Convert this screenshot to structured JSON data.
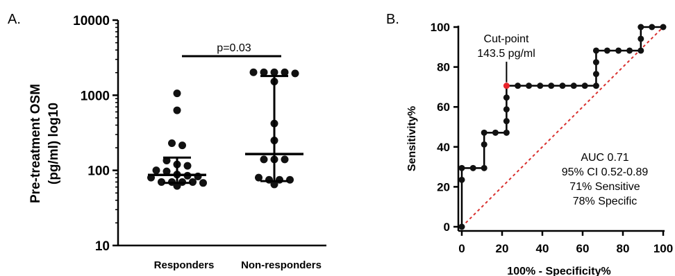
{
  "panels": {
    "a": "A.",
    "b": "B."
  },
  "chart_data": [
    {
      "type": "scatter",
      "scale": "log",
      "ylabel_line1": "Pre-treatment OSM",
      "ylabel_line2": "(pg/ml) log10",
      "ylim": [
        10,
        10000
      ],
      "yticks": [
        10,
        100,
        1000,
        10000
      ],
      "ytick_labels": [
        "10",
        "100",
        "1000",
        "10000"
      ],
      "categories": [
        "Responders",
        "Non-responders"
      ],
      "significance": "p=0.03",
      "groups": [
        {
          "name": "Responders",
          "values": [
            1060,
            630,
            230,
            215,
            135,
            120,
            115,
            100,
            97,
            88,
            85,
            83,
            80,
            70,
            70,
            70,
            70,
            68,
            62
          ],
          "median": 87,
          "iqr": [
            68,
            148
          ]
        },
        {
          "name": "Non-responders",
          "values": [
            2020,
            2020,
            2020,
            2020,
            1950,
            1520,
            420,
            250,
            140,
            140,
            140,
            80,
            75,
            75,
            75,
            65
          ],
          "median": 165,
          "iqr": [
            72,
            1800
          ]
        }
      ]
    },
    {
      "type": "line",
      "xlabel": "100% - Specificity%",
      "ylabel": "Sensitivity%",
      "xlim": [
        0,
        100
      ],
      "ylim": [
        0,
        100
      ],
      "xticks": [
        0,
        20,
        40,
        60,
        80,
        100
      ],
      "yticks": [
        0,
        20,
        40,
        60,
        80,
        100
      ],
      "xtick_labels": [
        "0",
        "20",
        "40",
        "60",
        "80",
        "100"
      ],
      "ytick_labels": [
        "0",
        "20",
        "40",
        "60",
        "80",
        "100"
      ],
      "reference_line": [
        [
          0,
          0
        ],
        [
          100,
          100
        ]
      ],
      "roc_points": [
        [
          0,
          0
        ],
        [
          0,
          23.5
        ],
        [
          0,
          29.4
        ],
        [
          5.6,
          29.4
        ],
        [
          11.1,
          29.4
        ],
        [
          11.1,
          41.2
        ],
        [
          11.1,
          47.1
        ],
        [
          16.7,
          47.1
        ],
        [
          22.2,
          47.1
        ],
        [
          22.2,
          52.9
        ],
        [
          22.2,
          58.8
        ],
        [
          22.2,
          64.7
        ],
        [
          22.2,
          70.6
        ],
        [
          27.8,
          70.6
        ],
        [
          33.3,
          70.6
        ],
        [
          38.9,
          70.6
        ],
        [
          44.4,
          70.6
        ],
        [
          50,
          70.6
        ],
        [
          55.6,
          70.6
        ],
        [
          61.1,
          70.6
        ],
        [
          66.7,
          70.6
        ],
        [
          66.7,
          76.5
        ],
        [
          66.7,
          82.4
        ],
        [
          66.7,
          88.2
        ],
        [
          72.2,
          88.2
        ],
        [
          77.8,
          88.2
        ],
        [
          83.3,
          88.2
        ],
        [
          88.9,
          88.2
        ],
        [
          88.9,
          94.1
        ],
        [
          88.9,
          100
        ],
        [
          94.4,
          100
        ],
        [
          100,
          100
        ]
      ],
      "cutpoint": {
        "x": 22.2,
        "y": 70.6,
        "label_line1": "Cut-point",
        "label_line2": "143.5 pg/ml",
        "color": "#e8242b"
      },
      "stats": [
        "AUC 0.71",
        "95% CI 0.52-0.89",
        "71% Sensitive",
        "78% Specific"
      ],
      "line_color": "#000000",
      "reference_color": "#d9302e"
    }
  ]
}
